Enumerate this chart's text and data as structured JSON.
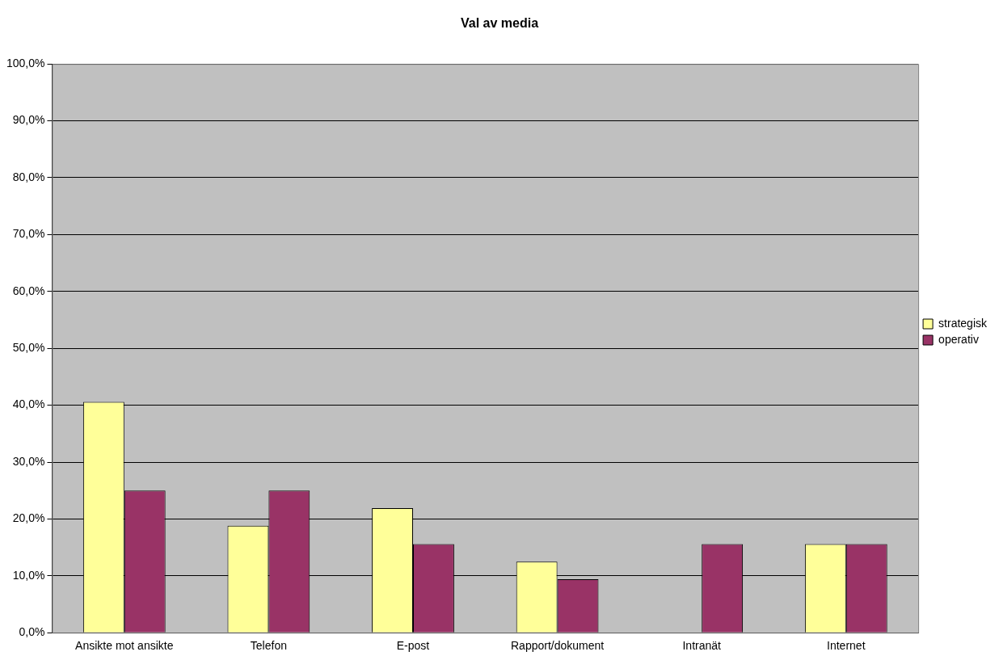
{
  "chart_data": {
    "type": "bar",
    "title": "Val av media",
    "categories": [
      "Ansikte mot ansikte",
      "Telefon",
      "E-post",
      "Rapport/dokument",
      "Intranät",
      "Internet"
    ],
    "series": [
      {
        "name": "strategisk",
        "color": "#ffff99",
        "values": [
          40.6,
          18.8,
          21.9,
          12.5,
          0,
          15.6
        ]
      },
      {
        "name": "operativ",
        "color": "#993366",
        "values": [
          25.0,
          25.0,
          15.6,
          9.4,
          15.6,
          15.6
        ]
      }
    ],
    "ylim": [
      0,
      100
    ],
    "yticks": [
      {
        "value": 0,
        "label": "0,0%"
      },
      {
        "value": 10,
        "label": "10,0%"
      },
      {
        "value": 20,
        "label": "20,0%"
      },
      {
        "value": 30,
        "label": "30,0%"
      },
      {
        "value": 40,
        "label": "40,0%"
      },
      {
        "value": 50,
        "label": "50,0%"
      },
      {
        "value": 60,
        "label": "60,0%"
      },
      {
        "value": 70,
        "label": "70,0%"
      },
      {
        "value": 80,
        "label": "80,0%"
      },
      {
        "value": 90,
        "label": "90,0%"
      },
      {
        "value": 100,
        "label": "100,0%"
      }
    ],
    "grid": "y",
    "legend": "right"
  }
}
